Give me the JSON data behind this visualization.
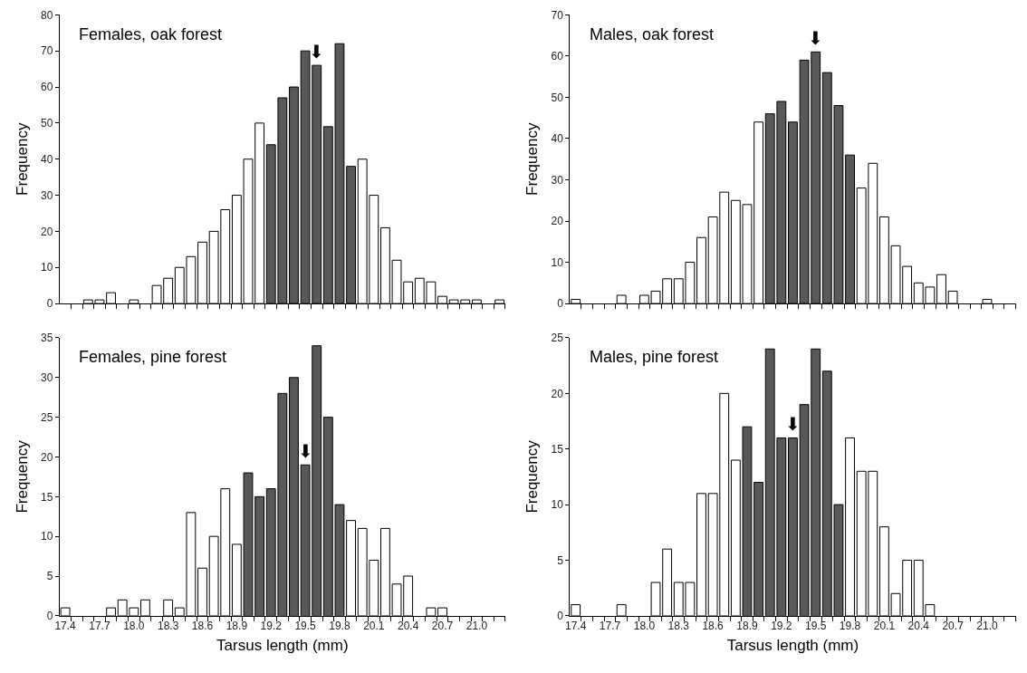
{
  "chart_data": [
    {
      "type": "bar",
      "title": "Females, oak forest",
      "ylabel": "Frequency",
      "tick_labels": "y",
      "x": [
        17.6,
        17.7,
        17.8,
        17.9,
        18.0,
        18.1,
        18.2,
        18.3,
        18.4,
        18.5,
        18.6,
        18.7,
        18.8,
        18.9,
        19.0,
        19.1,
        19.2,
        19.3,
        19.4,
        19.5,
        19.6,
        19.7,
        19.8,
        19.9,
        20.0,
        20.1,
        20.2,
        20.3,
        20.4,
        20.5,
        20.6,
        20.7,
        20.8,
        20.9,
        21.0,
        21.1,
        21.2
      ],
      "values": [
        1,
        1,
        3,
        null,
        1,
        null,
        5,
        7,
        10,
        13,
        17,
        20,
        26,
        30,
        40,
        50,
        44,
        57,
        60,
        70,
        66,
        49,
        72,
        38,
        40,
        30,
        21,
        12,
        6,
        7,
        6,
        2,
        1,
        1,
        1,
        null,
        1
      ],
      "colors": [
        "#ffffff",
        "#ffffff",
        "#ffffff",
        "#ffffff",
        "#ffffff",
        "#ffffff",
        "#ffffff",
        "#ffffff",
        "#ffffff",
        "#ffffff",
        "#ffffff",
        "#ffffff",
        "#ffffff",
        "#ffffff",
        "#ffffff",
        "#ffffff",
        "#595959",
        "#595959",
        "#595959",
        "#595959",
        "#595959",
        "#595959",
        "#595959",
        "#595959",
        "#ffffff",
        "#ffffff",
        "#ffffff",
        "#ffffff",
        "#ffffff",
        "#ffffff",
        "#ffffff",
        "#ffffff",
        "#ffffff",
        "#ffffff",
        "#ffffff",
        "#ffffff",
        "#ffffff"
      ],
      "xlim": [
        17.35,
        21.25
      ],
      "xticks": [
        {
          "value": 17.45,
          "label": null
        },
        {
          "value": 17.55,
          "label": null
        },
        {
          "value": 17.65,
          "label": null
        },
        {
          "value": 17.75,
          "label": null
        },
        {
          "value": 17.85,
          "label": null
        },
        {
          "value": 17.95,
          "label": null
        },
        {
          "value": 18.05,
          "label": null
        },
        {
          "value": 18.15,
          "label": null
        },
        {
          "value": 18.25,
          "label": null
        },
        {
          "value": 18.35,
          "label": null
        },
        {
          "value": 18.45,
          "label": null
        },
        {
          "value": 18.55,
          "label": null
        },
        {
          "value": 18.65,
          "label": null
        },
        {
          "value": 18.75,
          "label": null
        },
        {
          "value": 18.85,
          "label": null
        },
        {
          "value": 18.95,
          "label": null
        },
        {
          "value": 19.05,
          "label": null
        },
        {
          "value": 19.15,
          "label": null
        },
        {
          "value": 19.25,
          "label": null
        },
        {
          "value": 19.35,
          "label": null
        },
        {
          "value": 19.45,
          "label": null
        },
        {
          "value": 19.55,
          "label": null
        },
        {
          "value": 19.65,
          "label": null
        },
        {
          "value": 19.75,
          "label": null
        },
        {
          "value": 19.85,
          "label": null
        },
        {
          "value": 19.95,
          "label": null
        },
        {
          "value": 20.05,
          "label": null
        },
        {
          "value": 20.15,
          "label": null
        },
        {
          "value": 20.25,
          "label": null
        },
        {
          "value": 20.35,
          "label": null
        },
        {
          "value": 20.45,
          "label": null
        },
        {
          "value": 20.55,
          "label": null
        },
        {
          "value": 20.65,
          "label": null
        },
        {
          "value": 20.75,
          "label": null
        },
        {
          "value": 20.85,
          "label": null
        },
        {
          "value": 20.95,
          "label": null
        },
        {
          "value": 21.05,
          "label": null
        },
        {
          "value": 21.15,
          "label": null
        },
        {
          "value": 21.25,
          "label": null
        }
      ],
      "ylim": [
        0,
        80
      ],
      "yticks": [
        0,
        10,
        20,
        30,
        40,
        50,
        60,
        70,
        80
      ],
      "annotations": [
        {
          "text": "⬇",
          "x": 19.6,
          "y": 66
        }
      ]
    },
    {
      "type": "bar",
      "title": "Males, oak forest",
      "ylabel": "Frequency",
      "tick_labels": "y",
      "x": [
        17.4,
        17.5,
        17.6,
        17.7,
        17.8,
        17.9,
        18.0,
        18.1,
        18.2,
        18.3,
        18.4,
        18.5,
        18.6,
        18.7,
        18.8,
        18.9,
        19.0,
        19.1,
        19.2,
        19.3,
        19.4,
        19.5,
        19.6,
        19.7,
        19.8,
        19.9,
        20.0,
        20.1,
        20.2,
        20.3,
        20.4,
        20.5,
        20.6,
        20.7,
        20.8,
        20.9,
        21.0
      ],
      "values": [
        1,
        null,
        null,
        null,
        2,
        null,
        2,
        3,
        6,
        6,
        10,
        16,
        21,
        27,
        25,
        24,
        44,
        46,
        49,
        44,
        59,
        61,
        56,
        48,
        36,
        28,
        34,
        21,
        14,
        9,
        5,
        4,
        7,
        3,
        null,
        null,
        1
      ],
      "colors": [
        "#ffffff",
        "#ffffff",
        "#ffffff",
        "#ffffff",
        "#ffffff",
        "#ffffff",
        "#ffffff",
        "#ffffff",
        "#ffffff",
        "#ffffff",
        "#ffffff",
        "#ffffff",
        "#ffffff",
        "#ffffff",
        "#ffffff",
        "#ffffff",
        "#ffffff",
        "#595959",
        "#595959",
        "#595959",
        "#595959",
        "#595959",
        "#595959",
        "#595959",
        "#595959",
        "#ffffff",
        "#ffffff",
        "#ffffff",
        "#ffffff",
        "#ffffff",
        "#ffffff",
        "#ffffff",
        "#ffffff",
        "#ffffff",
        "#ffffff",
        "#ffffff",
        "#ffffff"
      ],
      "xlim": [
        17.35,
        21.25
      ],
      "xticks": [
        {
          "value": 17.45,
          "label": null
        },
        {
          "value": 17.55,
          "label": null
        },
        {
          "value": 17.65,
          "label": null
        },
        {
          "value": 17.75,
          "label": null
        },
        {
          "value": 17.85,
          "label": null
        },
        {
          "value": 17.95,
          "label": null
        },
        {
          "value": 18.05,
          "label": null
        },
        {
          "value": 18.15,
          "label": null
        },
        {
          "value": 18.25,
          "label": null
        },
        {
          "value": 18.35,
          "label": null
        },
        {
          "value": 18.45,
          "label": null
        },
        {
          "value": 18.55,
          "label": null
        },
        {
          "value": 18.65,
          "label": null
        },
        {
          "value": 18.75,
          "label": null
        },
        {
          "value": 18.85,
          "label": null
        },
        {
          "value": 18.95,
          "label": null
        },
        {
          "value": 19.05,
          "label": null
        },
        {
          "value": 19.15,
          "label": null
        },
        {
          "value": 19.25,
          "label": null
        },
        {
          "value": 19.35,
          "label": null
        },
        {
          "value": 19.45,
          "label": null
        },
        {
          "value": 19.55,
          "label": null
        },
        {
          "value": 19.65,
          "label": null
        },
        {
          "value": 19.75,
          "label": null
        },
        {
          "value": 19.85,
          "label": null
        },
        {
          "value": 19.95,
          "label": null
        },
        {
          "value": 20.05,
          "label": null
        },
        {
          "value": 20.15,
          "label": null
        },
        {
          "value": 20.25,
          "label": null
        },
        {
          "value": 20.35,
          "label": null
        },
        {
          "value": 20.45,
          "label": null
        },
        {
          "value": 20.55,
          "label": null
        },
        {
          "value": 20.65,
          "label": null
        },
        {
          "value": 20.75,
          "label": null
        },
        {
          "value": 20.85,
          "label": null
        },
        {
          "value": 20.95,
          "label": null
        },
        {
          "value": 21.05,
          "label": null
        },
        {
          "value": 21.15,
          "label": null
        },
        {
          "value": 21.25,
          "label": null
        }
      ],
      "ylim": [
        0,
        70
      ],
      "yticks": [
        0,
        10,
        20,
        30,
        40,
        50,
        60,
        70
      ],
      "annotations": [
        {
          "text": "⬇",
          "x": 19.5,
          "y": 61
        }
      ]
    },
    {
      "type": "bar",
      "title": "Females, pine forest",
      "ylabel": "Frequency",
      "xlabel": "Tarsus length (mm)",
      "x": [
        17.4,
        17.5,
        17.6,
        17.7,
        17.8,
        17.9,
        18.0,
        18.1,
        18.2,
        18.3,
        18.4,
        18.5,
        18.6,
        18.7,
        18.8,
        18.9,
        19.0,
        19.1,
        19.2,
        19.3,
        19.4,
        19.5,
        19.6,
        19.7,
        19.8,
        19.9,
        20.0,
        20.1,
        20.2,
        20.3,
        20.4,
        20.5,
        20.6,
        20.7
      ],
      "values": [
        1,
        null,
        null,
        null,
        1,
        2,
        1,
        2,
        null,
        2,
        1,
        13,
        6,
        10,
        16,
        9,
        18,
        15,
        16,
        28,
        30,
        19,
        34,
        25,
        14,
        12,
        11,
        7,
        11,
        4,
        5,
        null,
        1,
        1
      ],
      "colors": [
        "#ffffff",
        "#ffffff",
        "#ffffff",
        "#ffffff",
        "#ffffff",
        "#ffffff",
        "#ffffff",
        "#ffffff",
        "#ffffff",
        "#ffffff",
        "#ffffff",
        "#ffffff",
        "#ffffff",
        "#ffffff",
        "#ffffff",
        "#ffffff",
        "#595959",
        "#595959",
        "#595959",
        "#595959",
        "#595959",
        "#595959",
        "#595959",
        "#595959",
        "#595959",
        "#ffffff",
        "#ffffff",
        "#ffffff",
        "#ffffff",
        "#ffffff",
        "#ffffff",
        "#ffffff",
        "#ffffff",
        "#ffffff"
      ],
      "xlim": [
        17.35,
        21.25
      ],
      "xticks": [
        17.4,
        {
          "value": 17.45,
          "label": null
        },
        {
          "value": 17.55,
          "label": null
        },
        {
          "value": 17.65,
          "label": null
        },
        17.7,
        {
          "value": 17.75,
          "label": null
        },
        {
          "value": 17.85,
          "label": null
        },
        {
          "value": 17.95,
          "label": null
        },
        {
          "value": 18.0,
          "label": "18.0"
        },
        {
          "value": 18.05,
          "label": null
        },
        {
          "value": 18.15,
          "label": null
        },
        {
          "value": 18.25,
          "label": null
        },
        18.3,
        {
          "value": 18.35,
          "label": null
        },
        {
          "value": 18.45,
          "label": null
        },
        {
          "value": 18.55,
          "label": null
        },
        18.6,
        {
          "value": 18.65,
          "label": null
        },
        {
          "value": 18.75,
          "label": null
        },
        {
          "value": 18.85,
          "label": null
        },
        18.9,
        {
          "value": 18.95,
          "label": null
        },
        {
          "value": 19.05,
          "label": null
        },
        {
          "value": 19.15,
          "label": null
        },
        19.2,
        {
          "value": 19.25,
          "label": null
        },
        {
          "value": 19.35,
          "label": null
        },
        {
          "value": 19.45,
          "label": null
        },
        19.5,
        {
          "value": 19.55,
          "label": null
        },
        {
          "value": 19.65,
          "label": null
        },
        {
          "value": 19.75,
          "label": null
        },
        19.8,
        {
          "value": 19.85,
          "label": null
        },
        {
          "value": 19.95,
          "label": null
        },
        {
          "value": 20.05,
          "label": null
        },
        20.1,
        {
          "value": 20.15,
          "label": null
        },
        {
          "value": 20.25,
          "label": null
        },
        {
          "value": 20.35,
          "label": null
        },
        20.4,
        {
          "value": 20.45,
          "label": null
        },
        {
          "value": 20.55,
          "label": null
        },
        {
          "value": 20.65,
          "label": null
        },
        20.7,
        {
          "value": 20.75,
          "label": null
        },
        {
          "value": 20.85,
          "label": null
        },
        {
          "value": 20.95,
          "label": null
        },
        {
          "value": 21.0,
          "label": "21.0"
        },
        {
          "value": 21.05,
          "label": null
        },
        {
          "value": 21.15,
          "label": null
        },
        {
          "value": 21.25,
          "label": null
        }
      ],
      "ylim": [
        0,
        35
      ],
      "yticks": [
        0,
        5,
        10,
        15,
        20,
        25,
        30,
        35
      ],
      "annotations": [
        {
          "text": "⬇",
          "x": 19.5,
          "y": 19
        }
      ]
    },
    {
      "type": "bar",
      "title": "Males, pine forest",
      "ylabel": "Frequency",
      "xlabel": "Tarsus length (mm)",
      "x": [
        17.4,
        17.5,
        17.6,
        17.7,
        17.8,
        17.9,
        18.0,
        18.1,
        18.2,
        18.3,
        18.4,
        18.5,
        18.6,
        18.7,
        18.8,
        18.9,
        19.0,
        19.1,
        19.2,
        19.3,
        19.4,
        19.5,
        19.6,
        19.7,
        19.8,
        19.9,
        20.0,
        20.1,
        20.2,
        20.3,
        20.4,
        20.5
      ],
      "values": [
        1,
        null,
        null,
        null,
        1,
        null,
        null,
        3,
        6,
        3,
        3,
        11,
        11,
        20,
        14,
        17,
        12,
        24,
        16,
        16,
        19,
        24,
        22,
        10,
        16,
        13,
        13,
        8,
        2,
        5,
        5,
        1
      ],
      "colors": [
        "#ffffff",
        "#ffffff",
        "#ffffff",
        "#ffffff",
        "#ffffff",
        "#ffffff",
        "#ffffff",
        "#ffffff",
        "#ffffff",
        "#ffffff",
        "#ffffff",
        "#ffffff",
        "#ffffff",
        "#ffffff",
        "#ffffff",
        "#595959",
        "#595959",
        "#595959",
        "#595959",
        "#595959",
        "#595959",
        "#595959",
        "#595959",
        "#595959",
        "#ffffff",
        "#ffffff",
        "#ffffff",
        "#ffffff",
        "#ffffff",
        "#ffffff",
        "#ffffff",
        "#ffffff"
      ],
      "xlim": [
        17.35,
        21.25
      ],
      "xticks": [
        17.4,
        {
          "value": 17.45,
          "label": null
        },
        {
          "value": 17.55,
          "label": null
        },
        {
          "value": 17.65,
          "label": null
        },
        17.7,
        {
          "value": 17.75,
          "label": null
        },
        {
          "value": 17.85,
          "label": null
        },
        {
          "value": 17.95,
          "label": null
        },
        {
          "value": 18.0,
          "label": "18.0"
        },
        {
          "value": 18.05,
          "label": null
        },
        {
          "value": 18.15,
          "label": null
        },
        {
          "value": 18.25,
          "label": null
        },
        18.3,
        {
          "value": 18.35,
          "label": null
        },
        {
          "value": 18.45,
          "label": null
        },
        {
          "value": 18.55,
          "label": null
        },
        18.6,
        {
          "value": 18.65,
          "label": null
        },
        {
          "value": 18.75,
          "label": null
        },
        {
          "value": 18.85,
          "label": null
        },
        18.9,
        {
          "value": 18.95,
          "label": null
        },
        {
          "value": 19.05,
          "label": null
        },
        {
          "value": 19.15,
          "label": null
        },
        19.2,
        {
          "value": 19.25,
          "label": null
        },
        {
          "value": 19.35,
          "label": null
        },
        {
          "value": 19.45,
          "label": null
        },
        19.5,
        {
          "value": 19.55,
          "label": null
        },
        {
          "value": 19.65,
          "label": null
        },
        {
          "value": 19.75,
          "label": null
        },
        19.8,
        {
          "value": 19.85,
          "label": null
        },
        {
          "value": 19.95,
          "label": null
        },
        {
          "value": 20.05,
          "label": null
        },
        20.1,
        {
          "value": 20.15,
          "label": null
        },
        {
          "value": 20.25,
          "label": null
        },
        {
          "value": 20.35,
          "label": null
        },
        20.4,
        {
          "value": 20.45,
          "label": null
        },
        {
          "value": 20.55,
          "label": null
        },
        {
          "value": 20.65,
          "label": null
        },
        20.7,
        {
          "value": 20.75,
          "label": null
        },
        {
          "value": 20.85,
          "label": null
        },
        {
          "value": 20.95,
          "label": null
        },
        {
          "value": 21.0,
          "label": "21.0"
        },
        {
          "value": 21.05,
          "label": null
        },
        {
          "value": 21.15,
          "label": null
        },
        {
          "value": 21.25,
          "label": null
        }
      ],
      "ylim": [
        0,
        25
      ],
      "yticks": [
        0,
        5,
        10,
        15,
        20,
        25
      ],
      "annotations": [
        {
          "text": "⬇",
          "x": 19.3,
          "y": 16
        }
      ]
    }
  ]
}
